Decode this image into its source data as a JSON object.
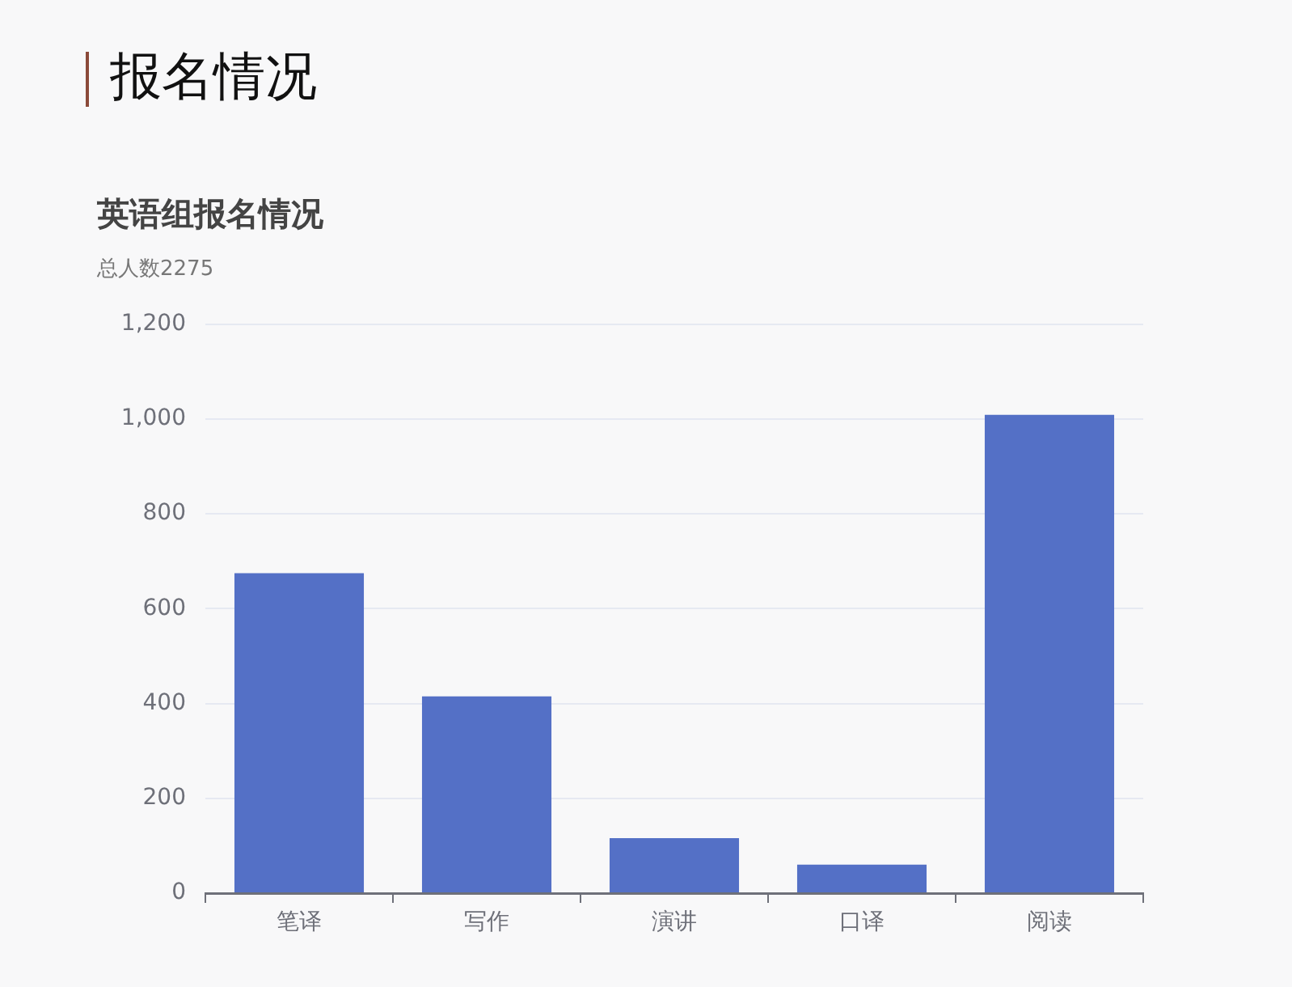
{
  "chart_data": {
    "type": "bar",
    "title": "英语组报名情况",
    "subtitle": "总人数2275",
    "annotations": [
      "报名情况"
    ],
    "categories": [
      "笔译",
      "写作",
      "演讲",
      "口译",
      "阅读"
    ],
    "values": [
      675,
      415,
      116,
      60,
      1009
    ],
    "color": "#5470c6",
    "ylim": [
      0,
      1200
    ],
    "yticks": [
      {
        "value": 0,
        "label": "0"
      },
      {
        "value": 200,
        "label": "200"
      },
      {
        "value": 400,
        "label": "400"
      },
      {
        "value": 600,
        "label": "600"
      },
      {
        "value": 800,
        "label": "800"
      },
      {
        "value": 1000,
        "label": "1,000"
      },
      {
        "value": 1200,
        "label": "1,200"
      }
    ],
    "grid": "y",
    "legend": false
  }
}
